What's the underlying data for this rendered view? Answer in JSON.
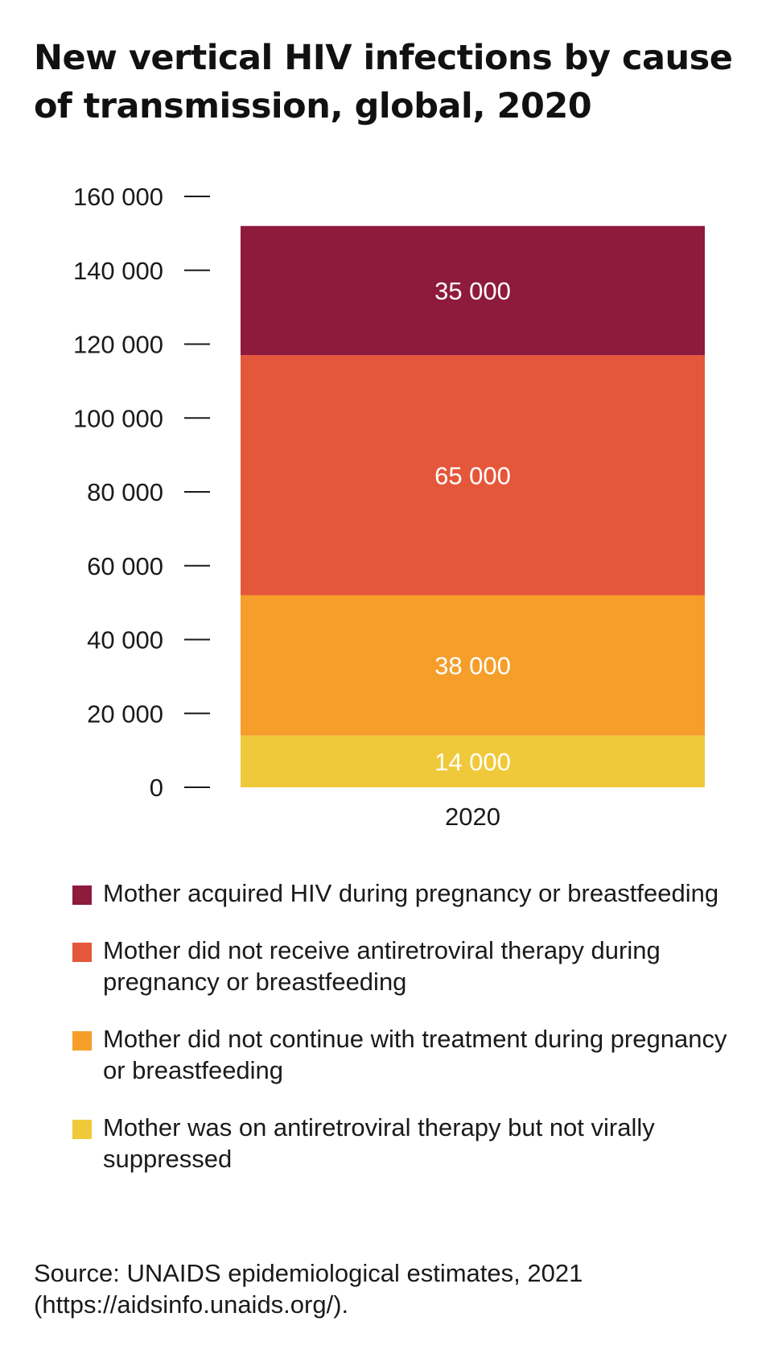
{
  "chart_data": {
    "type": "bar",
    "stacked": true,
    "title": "New vertical HIV infections by cause of transmission, global, 2020",
    "categories": [
      "2020"
    ],
    "ylim": [
      0,
      160000
    ],
    "yticks": [
      0,
      20000,
      40000,
      60000,
      80000,
      100000,
      120000,
      140000,
      160000
    ],
    "ytick_labels": [
      "0",
      "20 000",
      "40 000",
      "60 000",
      "80 000",
      "100 000",
      "120 000",
      "140 000",
      "160 000"
    ],
    "series": [
      {
        "name": "Mother was on antiretroviral therapy but not virally suppressed",
        "values": [
          14000
        ],
        "value_labels": [
          "14 000"
        ],
        "color": "#f0c93a"
      },
      {
        "name": "Mother did not continue with treatment during pregnancy or breastfeeding",
        "values": [
          38000
        ],
        "value_labels": [
          "38 000"
        ],
        "color": "#f59e2a"
      },
      {
        "name": "Mother did not receive antiretroviral therapy during pregnancy or breastfeeding",
        "values": [
          65000
        ],
        "value_labels": [
          "65 000"
        ],
        "color": "#e5573a"
      },
      {
        "name": "Mother acquired HIV during pregnancy or breastfeeding",
        "values": [
          35000
        ],
        "value_labels": [
          "35 000"
        ],
        "color": "#8e1a3c"
      }
    ],
    "legend_order": [
      3,
      2,
      1,
      0
    ],
    "grid": false,
    "legend_position": "bottom"
  },
  "source": "Source: UNAIDS epidemiological estimates, 2021 (https://aidsinfo.unaids.org/)."
}
